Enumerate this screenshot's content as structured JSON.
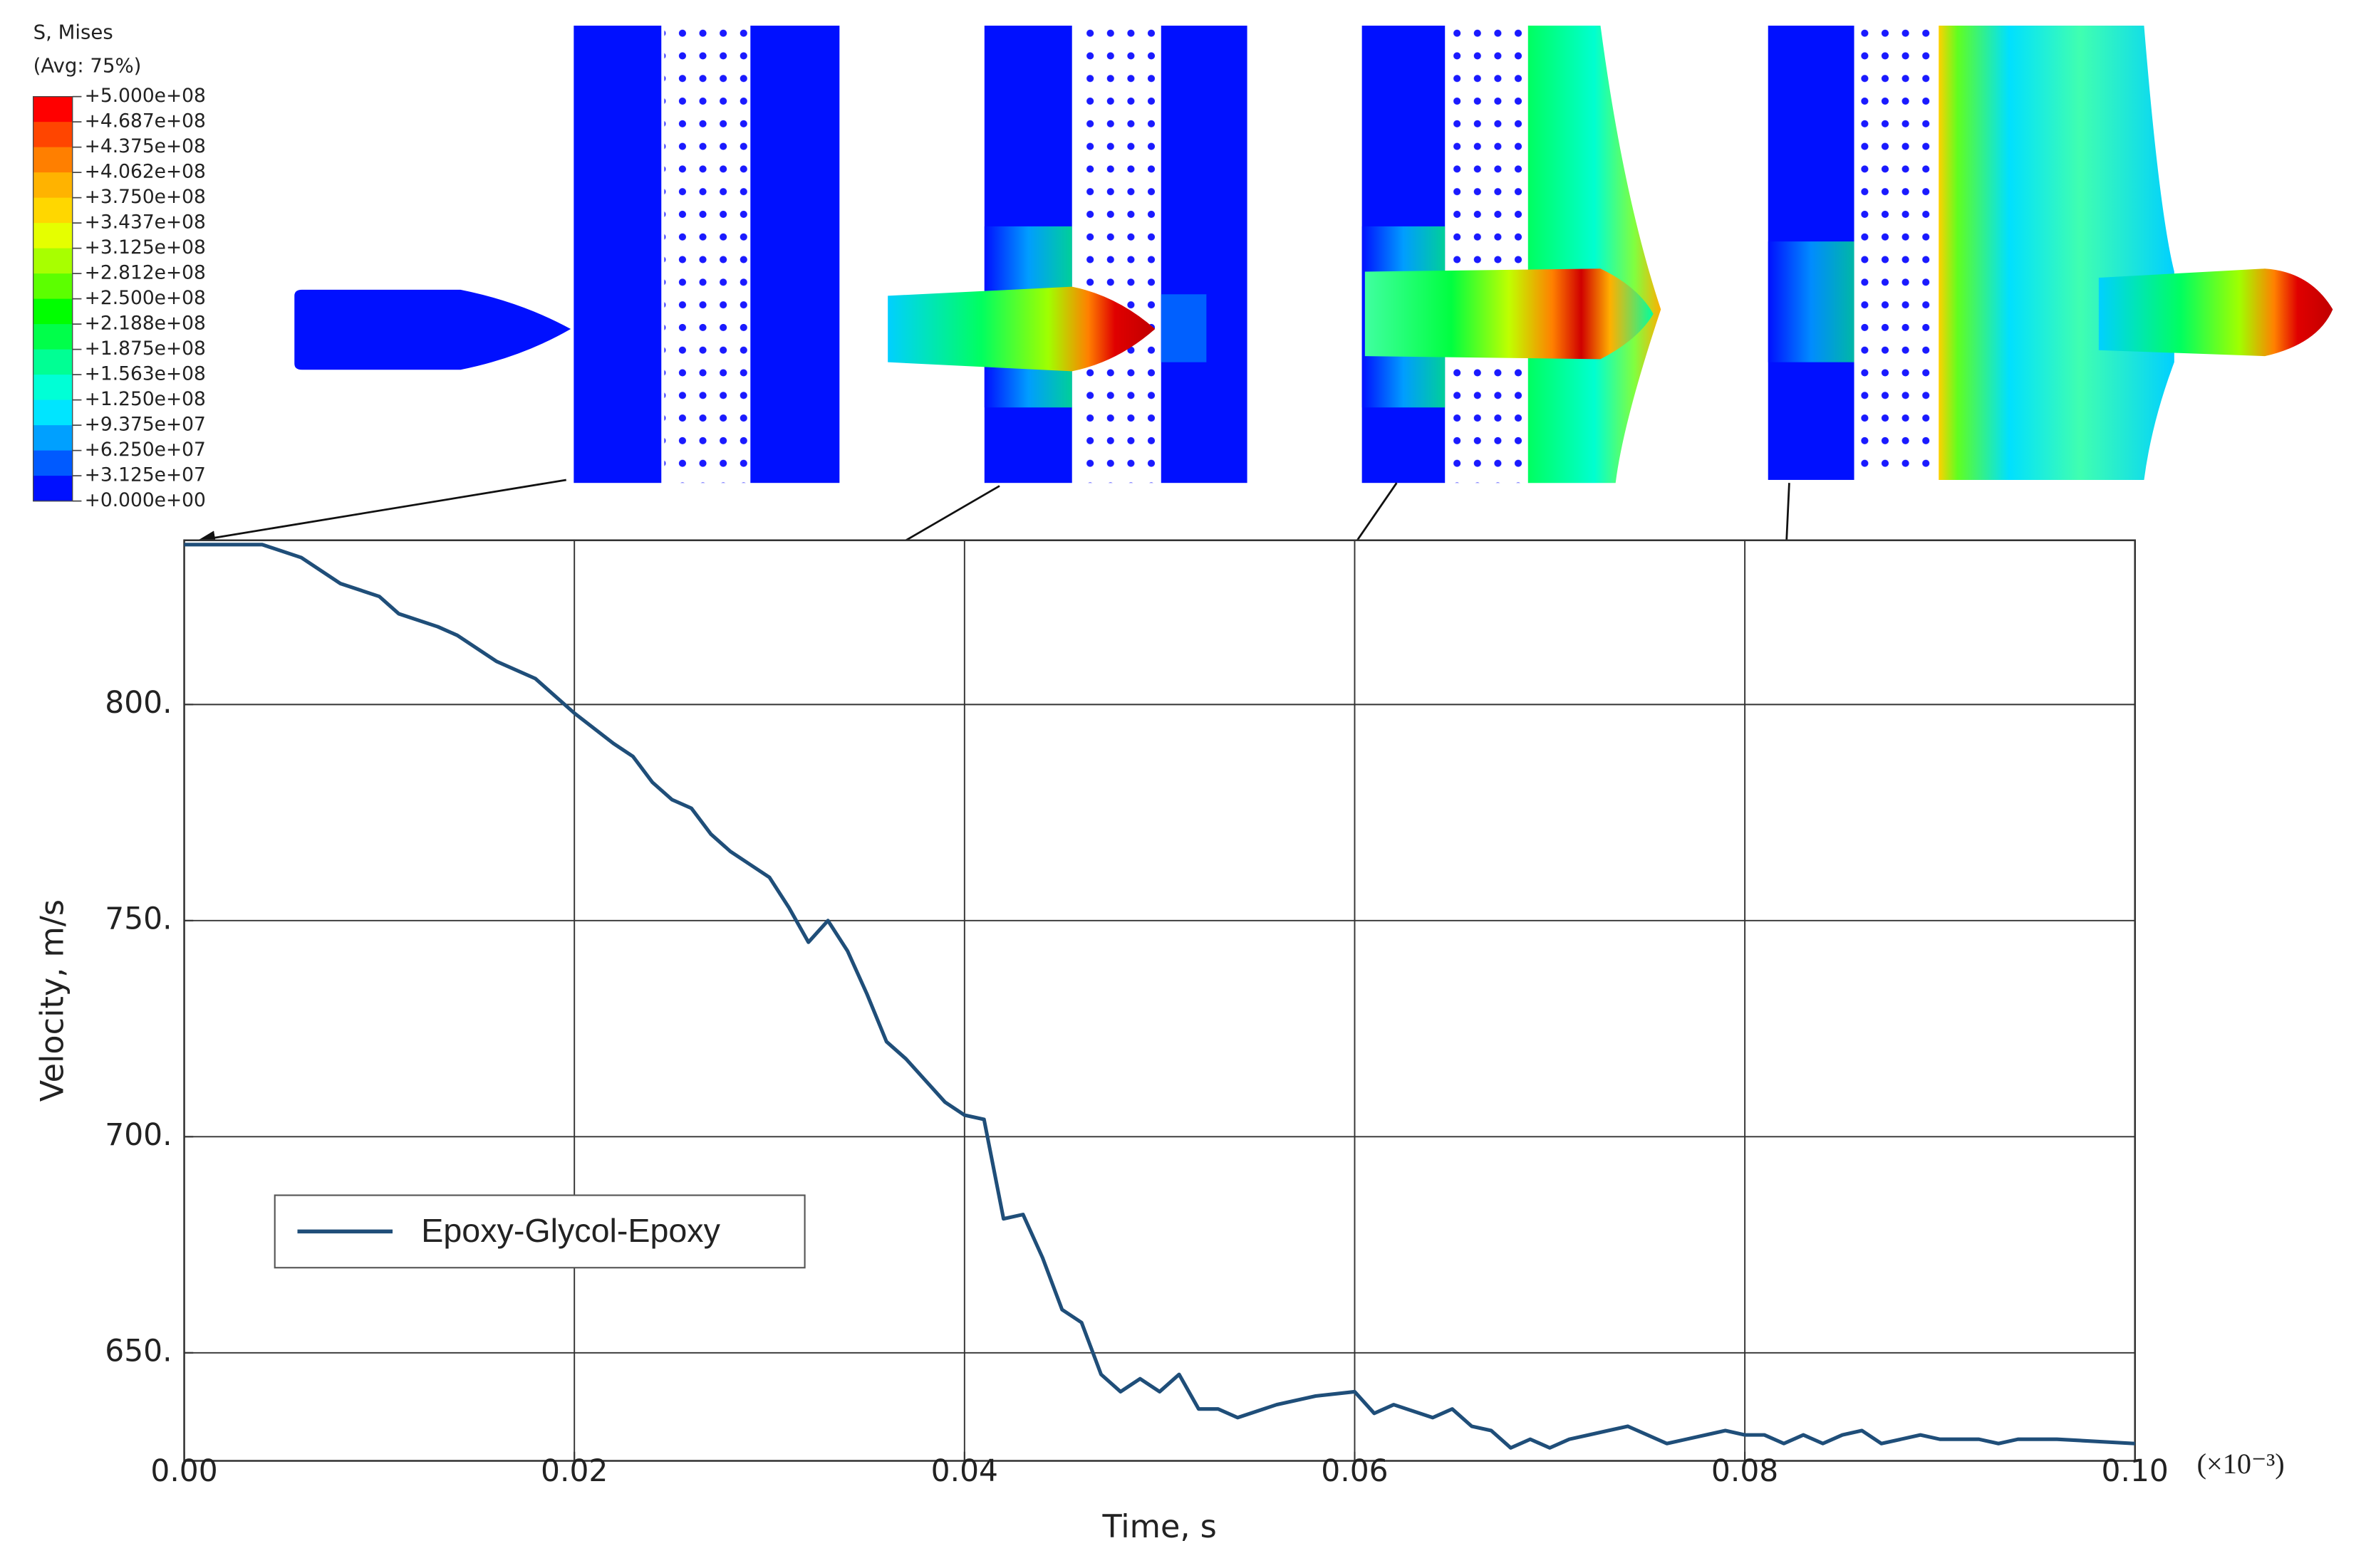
{
  "chart_data": {
    "type": "line",
    "xlabel": "Time, s",
    "ylabel": "Velocity, m/s",
    "x_multiplier": "(×10⁻³)",
    "x": [
      0.0,
      0.004,
      0.006,
      0.008,
      0.01,
      0.011,
      0.013,
      0.014,
      0.016,
      0.018,
      0.02,
      0.022,
      0.023,
      0.024,
      0.025,
      0.026,
      0.027,
      0.028,
      0.029,
      0.03,
      0.031,
      0.032,
      0.033,
      0.034,
      0.035,
      0.036,
      0.037,
      0.038,
      0.039,
      0.04,
      0.041,
      0.042,
      0.043,
      0.044,
      0.045,
      0.046,
      0.047,
      0.048,
      0.049,
      0.05,
      0.051,
      0.052,
      0.053,
      0.054,
      0.056,
      0.058,
      0.06,
      0.061,
      0.062,
      0.064,
      0.065,
      0.066,
      0.067,
      0.068,
      0.069,
      0.07,
      0.071,
      0.072,
      0.073,
      0.074,
      0.075,
      0.076,
      0.077,
      0.078,
      0.079,
      0.08,
      0.081,
      0.082,
      0.083,
      0.084,
      0.085,
      0.086,
      0.087,
      0.088,
      0.089,
      0.09,
      0.091,
      0.092,
      0.093,
      0.094,
      0.095,
      0.096,
      0.1
    ],
    "series": [
      {
        "name": "Epoxy-Glycol-Epoxy",
        "color": "#1f4e79",
        "values": [
          837,
          837,
          834,
          828,
          825,
          821,
          818,
          816,
          810,
          806,
          798,
          791,
          788,
          782,
          778,
          776,
          770,
          766,
          763,
          760,
          753,
          745,
          750,
          743,
          733,
          722,
          718,
          713,
          708,
          705,
          704,
          681,
          682,
          672,
          660,
          657,
          645,
          641,
          644,
          641,
          645,
          637,
          637,
          635,
          638,
          640,
          641,
          636,
          638,
          635,
          637,
          633,
          632,
          628,
          630,
          628,
          630,
          631,
          632,
          633,
          631,
          629,
          630,
          631,
          632,
          631,
          631,
          629,
          631,
          629,
          631,
          632,
          629,
          630,
          631,
          630,
          630,
          630,
          629,
          630,
          630,
          630,
          629
        ]
      }
    ],
    "xlim": [
      0,
      0.1
    ],
    "ylim": [
      625,
      838
    ],
    "xticks": [
      {
        "value": 0,
        "label": "0.00"
      },
      {
        "value": 0.02,
        "label": "0.02"
      },
      {
        "value": 0.04,
        "label": "0.04"
      },
      {
        "value": 0.06,
        "label": "0.06"
      },
      {
        "value": 0.08,
        "label": "0.08"
      },
      {
        "value": 0.1,
        "label": "0.10"
      }
    ],
    "yticks": [
      {
        "value": 650,
        "label": "650."
      },
      {
        "value": 700,
        "label": "700."
      },
      {
        "value": 750,
        "label": "750."
      },
      {
        "value": 800,
        "label": "800."
      }
    ],
    "grid": true,
    "legend": "lower left",
    "colorbar": {
      "title": "S, Mises",
      "subtitle": "(Avg: 75%)",
      "labels": [
        "+5.000e+08",
        "+4.687e+08",
        "+4.375e+08",
        "+4.062e+08",
        "+3.750e+08",
        "+3.437e+08",
        "+3.125e+08",
        "+2.812e+08",
        "+2.500e+08",
        "+2.188e+08",
        "+1.875e+08",
        "+1.563e+08",
        "+1.250e+08",
        "+9.375e+07",
        "+6.250e+07",
        "+3.125e+07",
        "+0.000e+00"
      ],
      "colors": [
        "#ff0000",
        "#ff4500",
        "#ff7f00",
        "#ffb300",
        "#ffd700",
        "#e5ff00",
        "#a8ff00",
        "#5cff00",
        "#00ff00",
        "#00ff4a",
        "#00ff94",
        "#00ffd6",
        "#00e5ff",
        "#00a0ff",
        "#005aff",
        "#0010ff"
      ]
    }
  }
}
